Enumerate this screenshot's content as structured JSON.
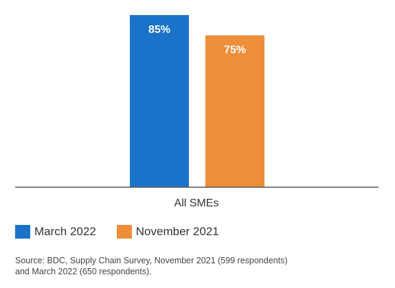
{
  "chart_data": {
    "type": "bar",
    "categories": [
      "All SMEs"
    ],
    "series": [
      {
        "name": "March 2022",
        "values": [
          85
        ],
        "color": "#1A73C9",
        "label": "85%"
      },
      {
        "name": "November 2021",
        "values": [
          75
        ],
        "color": "#EE8D3A",
        "label": "75%"
      }
    ],
    "ylim": [
      0,
      85
    ],
    "grid": false,
    "legend_position": "bottom-left",
    "title": "",
    "xlabel": "",
    "ylabel": ""
  },
  "source": {
    "line1": "Source: BDC, Supply Chain Survey, November 2021 (599 respondents)",
    "line2": "and March 2022 (650 respondents)."
  }
}
